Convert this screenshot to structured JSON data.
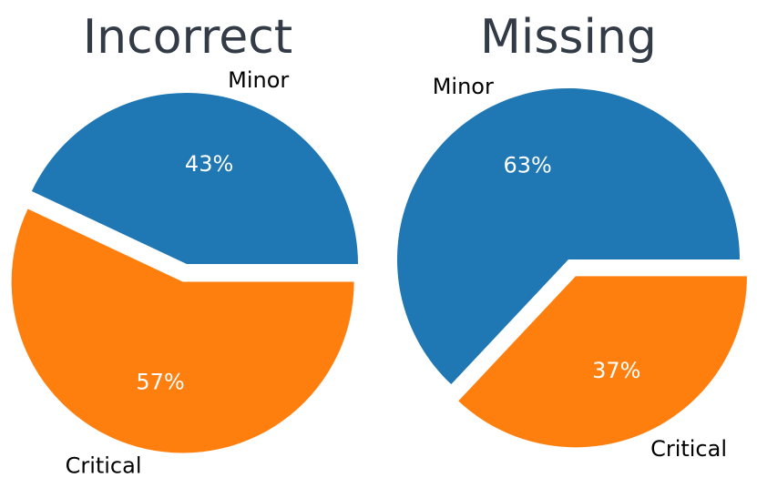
{
  "chart_data": [
    {
      "type": "pie",
      "title": "Incorrect",
      "slices": [
        {
          "label": "Minor",
          "value": 43,
          "pct_label": "43%",
          "color": "#1f77b4",
          "exploded": false
        },
        {
          "label": "Critical",
          "value": 57,
          "pct_label": "57%",
          "color": "#ff7f0e",
          "exploded": true
        }
      ],
      "start_angle_deg": 0,
      "direction": "counterclockwise"
    },
    {
      "type": "pie",
      "title": "Missing",
      "slices": [
        {
          "label": "Minor",
          "value": 63,
          "pct_label": "63%",
          "color": "#1f77b4",
          "exploded": false
        },
        {
          "label": "Critical",
          "value": 37,
          "pct_label": "37%",
          "color": "#ff7f0e",
          "exploded": true
        }
      ],
      "start_angle_deg": 0,
      "direction": "counterclockwise"
    }
  ]
}
